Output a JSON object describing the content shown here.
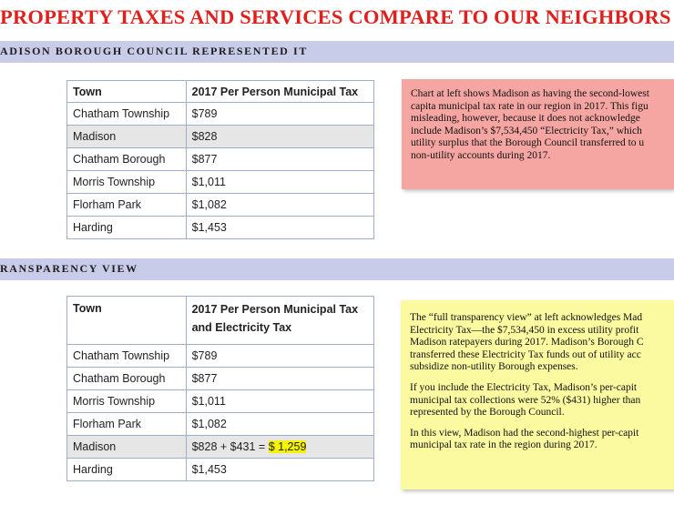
{
  "title": "PROPERTY TAXES AND SERVICES COMPARE TO OUR NEIGHBORS",
  "section1": {
    "heading": "ADISON BOROUGH COUNCIL REPRESENTED IT",
    "table": {
      "headers": [
        "Town",
        "2017 Per Person Municipal Tax"
      ],
      "rows": [
        {
          "town": "Chatham Township",
          "tax": "$789"
        },
        {
          "town": "Madison",
          "tax": "$828"
        },
        {
          "town": "Chatham Borough",
          "tax": "$877"
        },
        {
          "town": "Morris Township",
          "tax": "$1,011"
        },
        {
          "town": "Florham Park",
          "tax": "$1,082"
        },
        {
          "town": "Harding",
          "tax": "$1,453"
        }
      ]
    },
    "note_lines": [
      "Chart at left shows Madison as having the second-lowest",
      "capita municipal tax rate in our region in 2017. This figu",
      "misleading, however, because it does not acknowledge",
      "include Madison’s $7,534,450 “Electricity Tax,” which",
      "utility surplus that the Borough Council transferred to u",
      "non-utility accounts during 2017."
    ]
  },
  "section2": {
    "heading": "RANSPARENCY VIEW",
    "table": {
      "header_town": "Town",
      "header_tax_line1": "2017 Per Person Municipal Tax",
      "header_tax_line2": "and Electricity Tax",
      "rows": [
        {
          "town": "Chatham Township",
          "tax": "$789"
        },
        {
          "town": "Chatham Borough",
          "tax": "$877"
        },
        {
          "town": "Morris Township",
          "tax": "$1,011"
        },
        {
          "town": "Florham Park",
          "tax": "$1,082"
        },
        {
          "town": "Madison",
          "tax": "$828 + $431 = ",
          "tax_highlight": "$ 1,259"
        },
        {
          "town": "Harding",
          "tax": "$1,453"
        }
      ]
    },
    "note_paragraphs": [
      [
        "The “full transparency view” at left acknowledges Mad",
        "Electricity Tax—the $7,534,450 in excess utility profit",
        "Madison ratepayers during 2017.  Madison’s Borough C",
        "transferred these Electricity Tax funds out of utility acc",
        "subsidize non-utility Borough expenses."
      ],
      [
        "If you include the Electricity Tax, Madison’s per-capit",
        "municipal tax collections were 52% ($431) higher than",
        "represented by the Borough Council."
      ],
      [
        "In this view, Madison had the second-highest per-capit",
        "municipal tax rate in the region during 2017."
      ]
    ]
  },
  "colors": {
    "title": "#e0201c",
    "band": "#c9cce9",
    "pink_note": "#f6a6a2",
    "yellow_note": "#fcfaa0",
    "highlight": "#f6f200",
    "alt_row": "#e6e6e6"
  }
}
